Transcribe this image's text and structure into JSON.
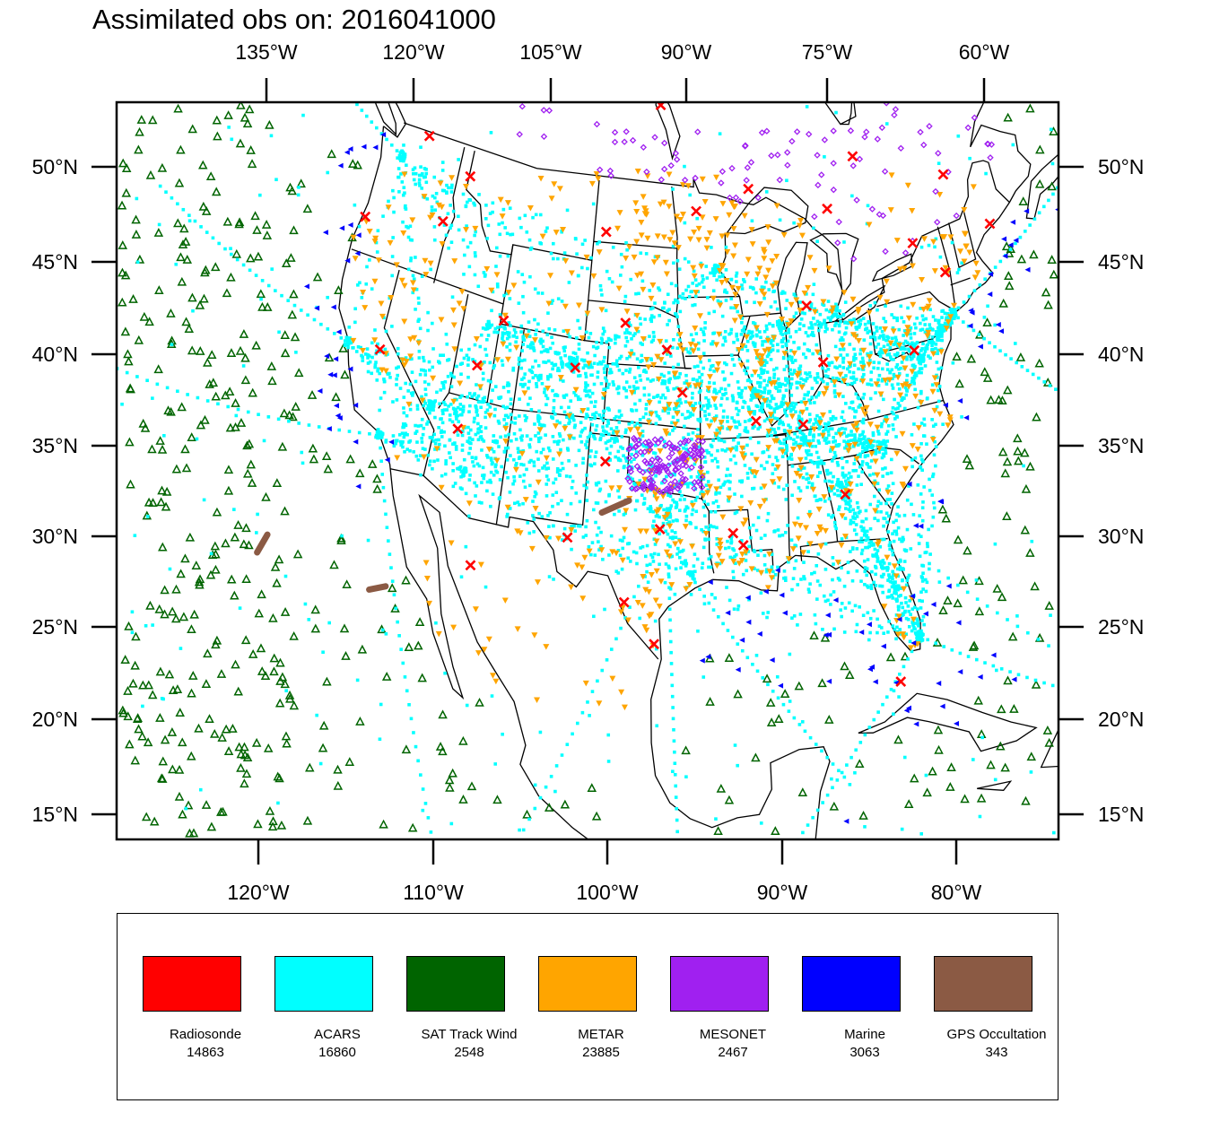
{
  "title": "Assimilated obs on: 2016041000",
  "top_axis": {
    "labels": [
      "135°W",
      "120°W",
      "105°W",
      "90°W",
      "75°W",
      "60°W"
    ],
    "lons": [
      -135,
      -120,
      -105,
      -90,
      -75,
      -60
    ]
  },
  "bottom_axis": {
    "labels": [
      "120°W",
      "110°W",
      "100°W",
      "90°W",
      "80°W"
    ],
    "lons": [
      -120,
      -110,
      -100,
      -90,
      -80
    ]
  },
  "left_axis": {
    "labels": [
      "50°N",
      "45°N",
      "40°N",
      "35°N",
      "30°N",
      "25°N",
      "20°N",
      "15°N"
    ],
    "lats": [
      50,
      45,
      40,
      35,
      30,
      25,
      20,
      15
    ]
  },
  "right_axis": {
    "labels": [
      "50°N",
      "45°N",
      "40°N",
      "35°N",
      "30°N",
      "25°N",
      "20°N",
      "15°N"
    ],
    "lats": [
      50,
      45,
      40,
      35,
      30,
      25,
      20,
      15
    ]
  },
  "legend": [
    {
      "name": "Radiosonde",
      "count": "14863",
      "color": "#ff0000",
      "marker": "x-icon"
    },
    {
      "name": "ACARS",
      "count": "16860",
      "color": "#00ffff",
      "marker": "square-dot-icon"
    },
    {
      "name": "SAT Track Wind",
      "count": "2548",
      "color": "#006400",
      "marker": "triangle-up-icon"
    },
    {
      "name": "METAR",
      "count": "23885",
      "color": "#ffa500",
      "marker": "triangle-down-icon"
    },
    {
      "name": "MESONET",
      "count": "2467",
      "color": "#a020f0",
      "marker": "diamond-icon"
    },
    {
      "name": "Marine",
      "count": "3063",
      "color": "#0000ff",
      "marker": "triangle-left-icon"
    },
    {
      "name": "GPS Occultation",
      "count": "343",
      "color": "#8b5a44",
      "marker": "bar-icon"
    }
  ],
  "radiosonde_sites": [
    [
      -122.9,
      51.0
    ],
    [
      -98.5,
      53.0
    ],
    [
      -63.0,
      54.0
    ],
    [
      -79.9,
      49.6
    ],
    [
      -90.0,
      48.8
    ],
    [
      -94.9,
      47.8
    ],
    [
      -82.9,
      47.3
    ],
    [
      -72.0,
      47.4
    ],
    [
      -115.9,
      47.7
    ],
    [
      -117.4,
      45.1
    ],
    [
      -123.9,
      43.8
    ],
    [
      -110.8,
      41.2
    ],
    [
      -100.8,
      42.1
    ],
    [
      -97.3,
      40.9
    ],
    [
      -96.0,
      38.8
    ],
    [
      -104.6,
      39.6
    ],
    [
      -112.3,
      38.7
    ],
    [
      -119.9,
      37.9
    ],
    [
      -112.9,
      35.4
    ],
    [
      -101.7,
      35.2
    ],
    [
      -97.5,
      32.1
    ],
    [
      -92.3,
      31.9
    ],
    [
      -86.7,
      36.9
    ],
    [
      -77.4,
      39.4
    ],
    [
      -73.7,
      42.7
    ],
    [
      -69.1,
      44.2
    ],
    [
      -63.0,
      42.8
    ],
    [
      -75.9,
      44.6
    ],
    [
      -85.6,
      42.7
    ],
    [
      -84.7,
      39.8
    ],
    [
      -90.3,
      37.3
    ],
    [
      -84.1,
      33.2
    ],
    [
      -81.9,
      23.9
    ],
    [
      -104.0,
      31.3
    ],
    [
      -110.4,
      29.1
    ],
    [
      -99.8,
      28.5
    ],
    [
      -97.7,
      26.6
    ],
    [
      -91.6,
      31.3
    ],
    [
      -120.4,
      48.9
    ],
    [
      -103.0,
      46.5
    ]
  ],
  "gps_tracks": [
    [
      [
        -96.8,
        54.2
      ],
      [
        -95.4,
        54.6
      ]
    ],
    [
      [
        -101.7,
        32.7
      ],
      [
        -99.8,
        33.4
      ]
    ],
    [
      [
        -124.3,
        26.2
      ],
      [
        -124.0,
        27.2
      ]
    ],
    [
      [
        -116.7,
        26.6
      ],
      [
        -115.7,
        27.0
      ]
    ]
  ]
}
